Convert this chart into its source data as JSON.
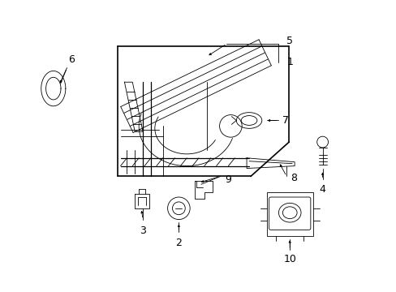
{
  "background_color": "#ffffff",
  "line_color": "#000000",
  "fig_width": 4.89,
  "fig_height": 3.6,
  "dpi": 100
}
